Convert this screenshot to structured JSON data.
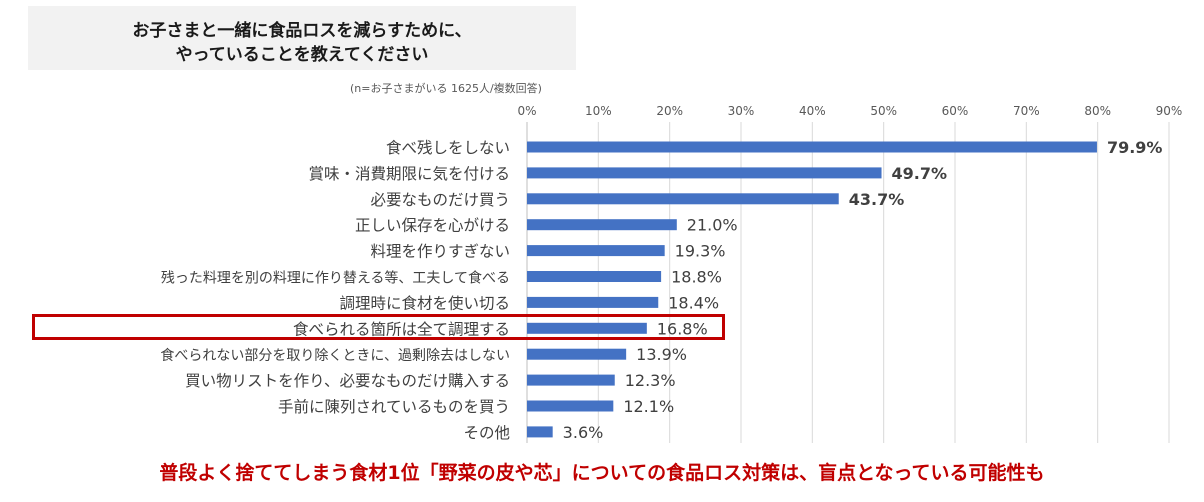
{
  "title_lines": [
    "お子さまと一緒に食品ロスを減らすために、",
    "やっていることを教えてください"
  ],
  "note": "(n=お子さまがいる 1625人/複数回答)",
  "footer": "普段よく捨ててしまう食材1位「野菜の皮や芯」についての食品ロス対策は、盲点となっている可能性も",
  "colors": {
    "bar": "#4472c4",
    "highlight": "#c00000",
    "title_bg": "#f2f2f2",
    "footer": "#c00000"
  },
  "chart_data": {
    "type": "bar",
    "orientation": "horizontal",
    "categories": [
      "食べ残しをしない",
      "賞味・消費期限に気を付ける",
      "必要なものだけ買う",
      "正しい保存を心がける",
      "料理を作りすぎない",
      "残った料理を別の料理に作り替える等、工夫して食べる",
      "調理時に食材を使い切る",
      "食べられる箇所は全て調理する",
      "食べられない部分を取り除くときに、過剰除去はしない",
      "買い物リストを作り、必要なものだけ購入する",
      "手前に陳列されているものを買う",
      "その他"
    ],
    "values": [
      79.9,
      49.7,
      43.7,
      21.0,
      19.3,
      18.8,
      18.4,
      16.8,
      13.9,
      12.3,
      12.1,
      3.6
    ],
    "data_labels": [
      "79.9%",
      "49.7%",
      "43.7%",
      "21.0%",
      "19.3%",
      "18.8%",
      "18.4%",
      "16.8%",
      "13.9%",
      "12.3%",
      "12.1%",
      "3.6%"
    ],
    "bold_labels": [
      true,
      true,
      true,
      false,
      false,
      false,
      false,
      false,
      false,
      false,
      false,
      false
    ],
    "highlighted_index": 7,
    "xlim": [
      0,
      90
    ],
    "ticks": [
      "0%",
      "10%",
      "20%",
      "30%",
      "40%",
      "50%",
      "60%",
      "70%",
      "80%",
      "90%"
    ],
    "tick_values": [
      0,
      10,
      20,
      30,
      40,
      50,
      60,
      70,
      80,
      90
    ],
    "grid": true,
    "legend": "none"
  }
}
